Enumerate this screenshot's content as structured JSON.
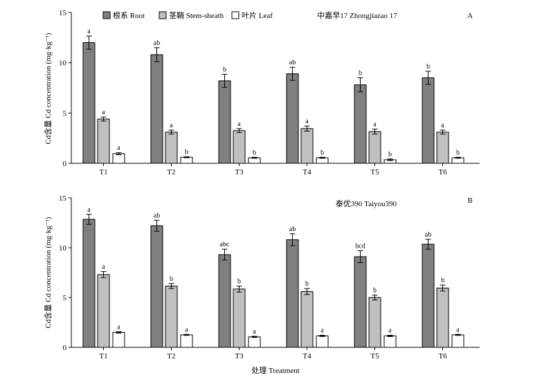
{
  "colors": {
    "root": "#808080",
    "stem": "#c0c0c0",
    "leaf": "#ffffff"
  },
  "legend": {
    "root": "根系 Root",
    "stem": "茎鞘 Stem-sheath",
    "leaf": "叶片 Leaf"
  },
  "xlabel": "处理 Treatment",
  "chart_data": [
    {
      "type": "bar",
      "panel": "A",
      "title": "中嘉早17 Zhongjiazao 17",
      "ylabel": "Cd含量  Cd concentration (mg·kg⁻¹)",
      "ylim": [
        0,
        15
      ],
      "yticks": [
        0,
        5,
        10,
        15
      ],
      "categories": [
        "T1",
        "T2",
        "T3",
        "T4",
        "T5",
        "T6"
      ],
      "legend_position": "top-left",
      "series": [
        {
          "name": "根系 Root",
          "key": "root",
          "values": [
            12.0,
            10.8,
            8.2,
            8.9,
            7.8,
            8.5
          ],
          "errors": [
            0.65,
            0.7,
            0.65,
            0.65,
            0.7,
            0.65
          ],
          "labels": [
            "a",
            "ab",
            "b",
            "ab",
            "b",
            "b"
          ]
        },
        {
          "name": "茎鞘 Stem-sheath",
          "key": "stem",
          "values": [
            4.4,
            3.1,
            3.25,
            3.45,
            3.15,
            3.1
          ],
          "errors": [
            0.2,
            0.2,
            0.2,
            0.25,
            0.25,
            0.2
          ],
          "labels": [
            "a",
            "a",
            "a",
            "a",
            "a",
            "a"
          ]
        },
        {
          "name": "叶片 Leaf",
          "key": "leaf",
          "values": [
            0.95,
            0.6,
            0.55,
            0.55,
            0.35,
            0.55
          ],
          "errors": [
            0.1,
            0.05,
            0.05,
            0.05,
            0.08,
            0.05
          ],
          "labels": [
            "a",
            "b",
            "b",
            "b",
            "b",
            "b"
          ]
        }
      ]
    },
    {
      "type": "bar",
      "panel": "B",
      "title": "泰优390 Taiyou390",
      "ylabel": "Cd含量  Cd concentration (mg·kg⁻¹)",
      "ylim": [
        0,
        15
      ],
      "yticks": [
        0,
        5,
        10,
        15
      ],
      "categories": [
        "T1",
        "T2",
        "T3",
        "T4",
        "T5",
        "T6"
      ],
      "series": [
        {
          "name": "根系 Root",
          "key": "root",
          "values": [
            12.85,
            12.2,
            9.3,
            10.8,
            9.1,
            10.35
          ],
          "errors": [
            0.5,
            0.55,
            0.55,
            0.6,
            0.6,
            0.5
          ],
          "labels": [
            "a",
            "ab",
            "abc",
            "ab",
            "bcd",
            "ab"
          ]
        },
        {
          "name": "茎鞘 Stem-sheath",
          "key": "stem",
          "values": [
            7.3,
            6.15,
            5.85,
            5.6,
            5.0,
            5.95
          ],
          "errors": [
            0.3,
            0.25,
            0.3,
            0.3,
            0.25,
            0.3
          ],
          "labels": [
            "a",
            "b",
            "b",
            "b",
            "b",
            "b"
          ]
        },
        {
          "name": "叶片 Leaf",
          "key": "leaf",
          "values": [
            1.5,
            1.25,
            1.05,
            1.15,
            1.15,
            1.25
          ],
          "errors": [
            0.07,
            0.05,
            0.06,
            0.06,
            0.07,
            0.05
          ],
          "labels": [
            "a",
            "a",
            "a",
            "a",
            "a",
            "a"
          ]
        }
      ]
    }
  ]
}
